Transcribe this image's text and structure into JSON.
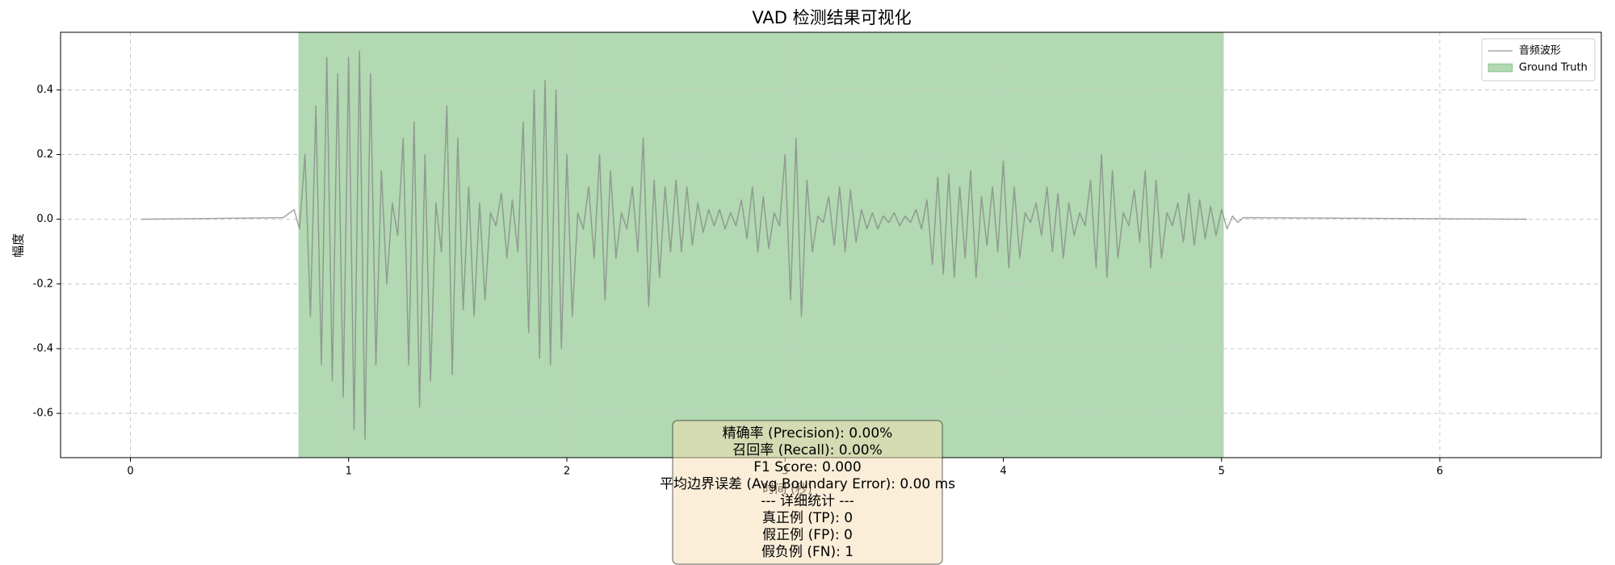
{
  "chart_data": {
    "type": "line",
    "title": "VAD 检测结果可视化",
    "xlabel": "时间 (秒)",
    "ylabel": "幅度",
    "xlim": [
      -0.32,
      6.74
    ],
    "ylim": [
      -0.737,
      0.578
    ],
    "xticks": [
      0,
      1,
      2,
      3,
      4,
      5,
      6
    ],
    "yticks": [
      -0.6,
      -0.4,
      -0.2,
      {
        "value": 0,
        "label": "0.0"
      },
      0.2,
      0.4
    ],
    "grid": true,
    "legend": "upper right",
    "spans": [
      {
        "name": "Ground Truth",
        "start": 0.77,
        "end": 5.01,
        "color": "green",
        "alpha": 0.3
      }
    ],
    "series": [
      {
        "name": "音频波形",
        "color": "gray",
        "alpha": 0.7,
        "x": [
          0.05,
          0.7,
          0.75,
          0.775,
          0.8,
          0.825,
          0.85,
          0.875,
          0.9,
          0.925,
          0.95,
          0.975,
          1.0,
          1.025,
          1.05,
          1.075,
          1.1,
          1.125,
          1.15,
          1.175,
          1.2,
          1.225,
          1.25,
          1.275,
          1.3,
          1.325,
          1.35,
          1.375,
          1.4,
          1.425,
          1.45,
          1.475,
          1.5,
          1.525,
          1.55,
          1.575,
          1.6,
          1.625,
          1.65,
          1.675,
          1.7,
          1.725,
          1.75,
          1.775,
          1.8,
          1.825,
          1.85,
          1.875,
          1.9,
          1.925,
          1.95,
          1.975,
          2.0,
          2.025,
          2.05,
          2.075,
          2.1,
          2.125,
          2.15,
          2.175,
          2.2,
          2.225,
          2.25,
          2.275,
          2.3,
          2.325,
          2.35,
          2.375,
          2.4,
          2.425,
          2.45,
          2.475,
          2.5,
          2.525,
          2.55,
          2.575,
          2.6,
          2.625,
          2.65,
          2.675,
          2.7,
          2.725,
          2.75,
          2.775,
          2.8,
          2.825,
          2.85,
          2.875,
          2.9,
          2.925,
          2.95,
          2.975,
          3.0,
          3.025,
          3.05,
          3.075,
          3.1,
          3.125,
          3.15,
          3.175,
          3.2,
          3.225,
          3.25,
          3.275,
          3.3,
          3.325,
          3.35,
          3.375,
          3.4,
          3.425,
          3.45,
          3.475,
          3.5,
          3.525,
          3.55,
          3.575,
          3.6,
          3.625,
          3.65,
          3.675,
          3.7,
          3.725,
          3.75,
          3.775,
          3.8,
          3.825,
          3.85,
          3.875,
          3.9,
          3.925,
          3.95,
          3.975,
          4.0,
          4.025,
          4.05,
          4.075,
          4.1,
          4.125,
          4.15,
          4.175,
          4.2,
          4.225,
          4.25,
          4.275,
          4.3,
          4.325,
          4.35,
          4.375,
          4.4,
          4.425,
          4.45,
          4.475,
          4.5,
          4.525,
          4.55,
          4.575,
          4.6,
          4.625,
          4.65,
          4.675,
          4.7,
          4.725,
          4.75,
          4.775,
          4.8,
          4.825,
          4.85,
          4.875,
          4.9,
          4.925,
          4.95,
          4.975,
          5.0,
          5.025,
          5.05,
          5.075,
          5.1,
          6.4
        ],
        "values": [
          0,
          0.005,
          0.03,
          -0.03,
          0.2,
          -0.3,
          0.35,
          -0.45,
          0.5,
          -0.5,
          0.45,
          -0.55,
          0.5,
          -0.65,
          0.52,
          -0.68,
          0.45,
          -0.45,
          0.15,
          -0.2,
          0.05,
          -0.05,
          0.25,
          -0.45,
          0.3,
          -0.58,
          0.2,
          -0.5,
          0.05,
          -0.1,
          0.35,
          -0.48,
          0.25,
          -0.28,
          0.1,
          -0.3,
          0.05,
          -0.25,
          0.02,
          -0.02,
          0.08,
          -0.12,
          0.06,
          -0.1,
          0.3,
          -0.35,
          0.4,
          -0.43,
          0.43,
          -0.45,
          0.4,
          -0.4,
          0.2,
          -0.3,
          0.02,
          -0.03,
          0.1,
          -0.12,
          0.2,
          -0.25,
          0.15,
          -0.12,
          0.02,
          -0.03,
          0.1,
          -0.1,
          0.25,
          -0.27,
          0.12,
          -0.18,
          0.1,
          -0.1,
          0.12,
          -0.1,
          0.1,
          -0.08,
          0.05,
          -0.04,
          0.03,
          -0.02,
          0.03,
          -0.03,
          0.02,
          -0.02,
          0.06,
          -0.06,
          0.1,
          -0.1,
          0.07,
          -0.09,
          0.02,
          -0.02,
          0.2,
          -0.25,
          0.25,
          -0.3,
          0.12,
          -0.1,
          0.01,
          -0.01,
          0.07,
          -0.08,
          0.1,
          -0.1,
          0.09,
          -0.07,
          0.03,
          -0.03,
          0.02,
          -0.03,
          0.01,
          -0.01,
          0.02,
          -0.02,
          0.01,
          -0.01,
          0.03,
          -0.03,
          0.06,
          -0.14,
          0.13,
          -0.17,
          0.14,
          -0.18,
          0.1,
          -0.12,
          0.15,
          -0.18,
          0.07,
          -0.08,
          0.1,
          -0.1,
          0.18,
          -0.15,
          0.1,
          -0.12,
          0.02,
          -0.01,
          0.05,
          -0.05,
          0.1,
          -0.1,
          0.08,
          -0.12,
          0.05,
          -0.05,
          0.02,
          -0.02,
          0.12,
          -0.15,
          0.2,
          -0.18,
          0.15,
          -0.12,
          0.02,
          -0.02,
          0.09,
          -0.07,
          0.15,
          -0.15,
          0.12,
          -0.12,
          0.02,
          -0.02,
          0.05,
          -0.07,
          0.08,
          -0.08,
          0.06,
          -0.06,
          0.04,
          -0.05,
          0.03,
          -0.03,
          0.01,
          -0.01,
          0.005,
          0
        ]
      }
    ],
    "stats_box": {
      "color": "wheat",
      "alpha": 0.5,
      "lines": [
        "精确率 (Precision): 0.00%",
        "召回率 (Recall): 0.00%",
        "F1 Score: 0.000",
        "平均边界误差 (Avg Boundary Error): 0.00 ms",
        "--- 详细统计 ---",
        "真正例 (TP): 0",
        "假正例 (FP): 0",
        "假负例 (FN): 1"
      ]
    }
  }
}
